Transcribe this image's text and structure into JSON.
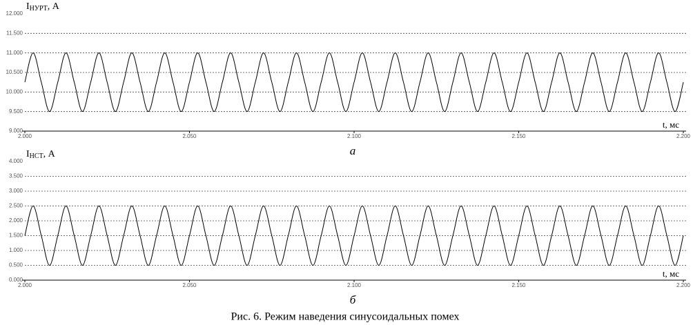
{
  "chart_data": [
    {
      "type": "line",
      "ylabel_symbol": "I",
      "ylabel_subscript": "НУРТ",
      "ylabel_unit": ", А",
      "xlabel": "t, мс",
      "subcaption": "а",
      "x": [
        2.0,
        2.0025,
        2.005,
        2.0075,
        2.01,
        2.0125,
        2.015,
        2.0175,
        2.02,
        2.0225,
        2.025,
        2.0275,
        2.03,
        2.0325,
        2.035,
        2.0375,
        2.04,
        2.0425,
        2.045,
        2.0475,
        2.05,
        2.0525,
        2.055,
        2.0575,
        2.06,
        2.0625,
        2.065,
        2.0675,
        2.07,
        2.0725,
        2.075,
        2.0775,
        2.08,
        2.0825,
        2.085,
        2.0875,
        2.09,
        2.0925,
        2.095,
        2.0975,
        2.1,
        2.1025,
        2.105,
        2.1075,
        2.11,
        2.1125,
        2.115,
        2.1175,
        2.12,
        2.1225,
        2.125,
        2.1275,
        2.13,
        2.1325,
        2.135,
        2.1375,
        2.14,
        2.1425,
        2.145,
        2.1475,
        2.15,
        2.1525,
        2.155,
        2.1575,
        2.16,
        2.1625,
        2.165,
        2.1675,
        2.17,
        2.1725,
        2.175,
        2.1775,
        2.18,
        2.1825,
        2.185,
        2.1875,
        2.19,
        2.1925,
        2.195,
        2.1975,
        2.2
      ],
      "series": [
        {
          "color": "#000000",
          "values": [
            10.25,
            11,
            10.25,
            9.5,
            10.25,
            11,
            10.25,
            9.5,
            10.25,
            11,
            10.25,
            9.5,
            10.25,
            11,
            10.25,
            9.5,
            10.25,
            11,
            10.25,
            9.5,
            10.25,
            11,
            10.25,
            9.5,
            10.25,
            11,
            10.25,
            9.5,
            10.25,
            11,
            10.25,
            9.5,
            10.25,
            11,
            10.25,
            9.5,
            10.25,
            11,
            10.25,
            9.5,
            10.25,
            11,
            10.25,
            9.5,
            10.25,
            11,
            10.25,
            9.5,
            10.25,
            11,
            10.25,
            9.5,
            10.25,
            11,
            10.25,
            9.5,
            10.25,
            11,
            10.25,
            9.5,
            10.25,
            11,
            10.25,
            9.5,
            10.25,
            11,
            10.25,
            9.5,
            10.25,
            11,
            10.25,
            9.5,
            10.25,
            11,
            10.25,
            9.5,
            10.25,
            11,
            10.25,
            9.5,
            10.25
          ]
        }
      ],
      "xlim": [
        2.0,
        2.2
      ],
      "xticks": [
        {
          "value": 2.0,
          "label": "2.000"
        },
        {
          "value": 2.05,
          "label": "2.050"
        },
        {
          "value": 2.1,
          "label": "2.100"
        },
        {
          "value": 2.15,
          "label": "2.150"
        },
        {
          "value": 2.2,
          "label": "2.200"
        }
      ],
      "ylim": [
        9,
        12
      ],
      "yticks": [
        {
          "value": 9,
          "label": "9.000"
        },
        {
          "value": 9.5,
          "label": "9.500"
        },
        {
          "value": 10,
          "label": "10.000"
        },
        {
          "value": 10.5,
          "label": "10.500"
        },
        {
          "value": 11,
          "label": "11.000"
        },
        {
          "value": 11.5,
          "label": "11.500"
        },
        {
          "value": 12,
          "label": "12.000"
        }
      ],
      "grid": true
    },
    {
      "type": "line",
      "ylabel_symbol": "I",
      "ylabel_subscript": "НСТ",
      "ylabel_unit": ", А",
      "xlabel": "t, мс",
      "subcaption": "б",
      "x": [
        2.0,
        2.0025,
        2.005,
        2.0075,
        2.01,
        2.0125,
        2.015,
        2.0175,
        2.02,
        2.0225,
        2.025,
        2.0275,
        2.03,
        2.0325,
        2.035,
        2.0375,
        2.04,
        2.0425,
        2.045,
        2.0475,
        2.05,
        2.0525,
        2.055,
        2.0575,
        2.06,
        2.0625,
        2.065,
        2.0675,
        2.07,
        2.0725,
        2.075,
        2.0775,
        2.08,
        2.0825,
        2.085,
        2.0875,
        2.09,
        2.0925,
        2.095,
        2.0975,
        2.1,
        2.1025,
        2.105,
        2.1075,
        2.11,
        2.1125,
        2.115,
        2.1175,
        2.12,
        2.1225,
        2.125,
        2.1275,
        2.13,
        2.1325,
        2.135,
        2.1375,
        2.14,
        2.1425,
        2.145,
        2.1475,
        2.15,
        2.1525,
        2.155,
        2.1575,
        2.16,
        2.1625,
        2.165,
        2.1675,
        2.17,
        2.1725,
        2.175,
        2.1775,
        2.18,
        2.1825,
        2.185,
        2.1875,
        2.19,
        2.1925,
        2.195,
        2.1975,
        2.2
      ],
      "series": [
        {
          "color": "#000000",
          "values": [
            1.5,
            2.5,
            1.5,
            0.5,
            1.5,
            2.5,
            1.5,
            0.5,
            1.5,
            2.5,
            1.5,
            0.5,
            1.5,
            2.5,
            1.5,
            0.5,
            1.5,
            2.5,
            1.5,
            0.5,
            1.5,
            2.5,
            1.5,
            0.5,
            1.5,
            2.5,
            1.5,
            0.5,
            1.5,
            2.5,
            1.5,
            0.5,
            1.5,
            2.5,
            1.5,
            0.5,
            1.5,
            2.5,
            1.5,
            0.5,
            1.5,
            2.5,
            1.5,
            0.5,
            1.5,
            2.5,
            1.5,
            0.5,
            1.5,
            2.5,
            1.5,
            0.5,
            1.5,
            2.5,
            1.5,
            0.5,
            1.5,
            2.5,
            1.5,
            0.5,
            1.5,
            2.5,
            1.5,
            0.5,
            1.5,
            2.5,
            1.5,
            0.5,
            1.5,
            2.5,
            1.5,
            0.5,
            1.5,
            2.5,
            1.5,
            0.5,
            1.5,
            2.5,
            1.5,
            0.5,
            1.5
          ]
        }
      ],
      "xlim": [
        2.0,
        2.2
      ],
      "xticks": [
        {
          "value": 2.0,
          "label": "2.000"
        },
        {
          "value": 2.05,
          "label": "2.050"
        },
        {
          "value": 2.1,
          "label": "2.100"
        },
        {
          "value": 2.15,
          "label": "2.150"
        },
        {
          "value": 2.2,
          "label": "2.200"
        }
      ],
      "ylim": [
        0,
        4
      ],
      "yticks": [
        {
          "value": 0,
          "label": "0.000"
        },
        {
          "value": 0.5,
          "label": "0.500"
        },
        {
          "value": 1,
          "label": "1.000"
        },
        {
          "value": 1.5,
          "label": "1.500"
        },
        {
          "value": 2,
          "label": "2.000"
        },
        {
          "value": 2.5,
          "label": "2.500"
        },
        {
          "value": 3,
          "label": "3.000"
        },
        {
          "value": 3.5,
          "label": "3.500"
        },
        {
          "value": 4,
          "label": "4.000"
        }
      ],
      "grid": true
    }
  ],
  "caption": "Рис. 6. Режим наведения синусоидальных помех"
}
